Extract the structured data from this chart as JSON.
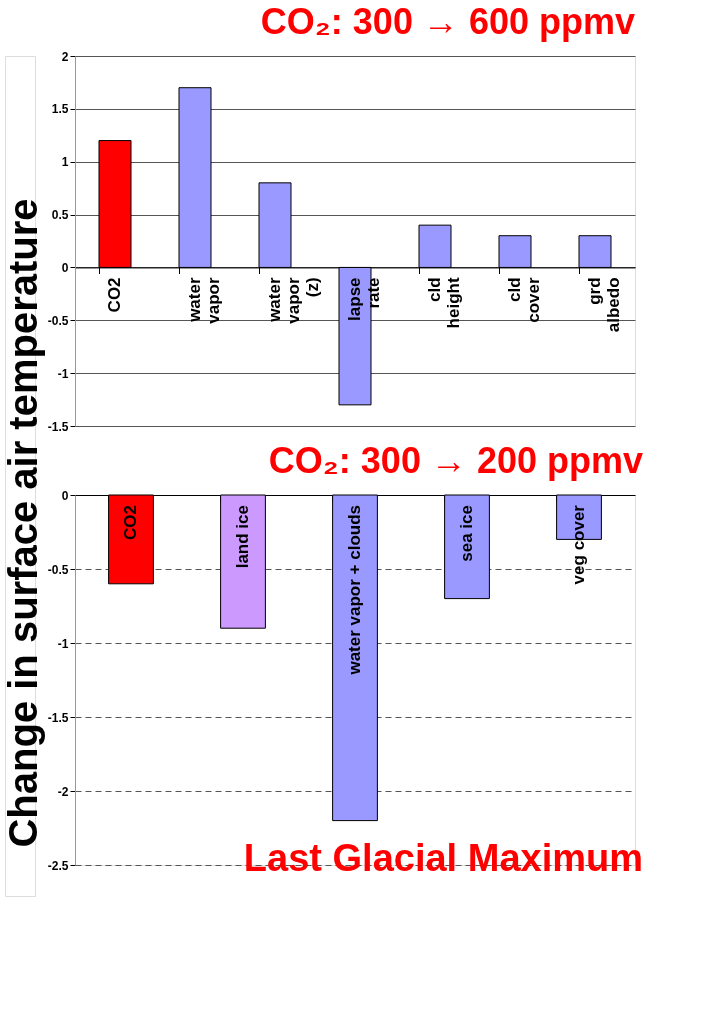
{
  "chart_data": [
    {
      "type": "bar",
      "title": "CO₂:  300 → 600 ppmv",
      "ylabel": "Change in surface air temperature",
      "categories": [
        "CO2",
        "water\nvapor",
        "water\nvapor\n(z)",
        "lapse\nrate",
        "cld\nheight",
        "cld\ncover",
        "grd\nalbedo"
      ],
      "values": [
        1.2,
        1.7,
        0.8,
        -1.3,
        0.4,
        0.3,
        0.3
      ],
      "colors": [
        "#ff0000",
        "#9999ff",
        "#9999ff",
        "#9999ff",
        "#9999ff",
        "#9999ff",
        "#9999ff"
      ],
      "ylim": [
        -1.5,
        2
      ],
      "yticks": [
        -1.5,
        -1,
        -0.5,
        0,
        0.5,
        1,
        1.5,
        2
      ],
      "grid": "y"
    },
    {
      "type": "bar",
      "title": "CO₂:  300 → 200 ppmv",
      "categories": [
        "CO2",
        "land ice",
        "water vapor + clouds",
        "sea ice",
        "veg cover"
      ],
      "values": [
        -0.6,
        -0.9,
        -2.2,
        -0.7,
        -0.3
      ],
      "colors": [
        "#ff0000",
        "#cc99ff",
        "#9999ff",
        "#9999ff",
        "#9999ff"
      ],
      "ylim": [
        -2.5,
        0
      ],
      "yticks": [
        -2.5,
        -2,
        -1.5,
        -1,
        -0.5,
        0
      ],
      "grid": "y",
      "annotations": [
        "Last Glacial Maximum"
      ]
    }
  ]
}
